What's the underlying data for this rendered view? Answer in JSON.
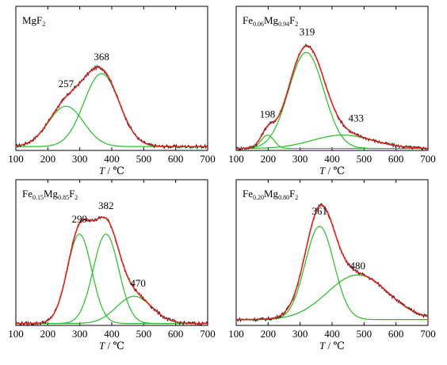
{
  "chart_data": [
    {
      "type": "line",
      "title_parts": [
        {
          "text": "MgF",
          "sub": false
        },
        {
          "text": "2",
          "sub": true
        }
      ],
      "xlabel_var": "T",
      "xlabel_unit": " / ℃",
      "xlim": [
        100,
        700
      ],
      "xticks": [
        "100",
        "200",
        "300",
        "400",
        "500",
        "600",
        "700"
      ],
      "baseline": 0.02,
      "ymax": 0.75,
      "components": [
        {
          "center": 257,
          "sigma": 55,
          "height": 0.21
        },
        {
          "center": 368,
          "sigma": 55,
          "height": 0.38
        }
      ],
      "peak_labels": [
        {
          "text": "257",
          "x": 257,
          "y": 0.33
        },
        {
          "text": "368",
          "x": 368,
          "y": 0.47
        }
      ]
    },
    {
      "type": "line",
      "title_parts": [
        {
          "text": "Fe",
          "sub": false
        },
        {
          "text": "0.06",
          "sub": true
        },
        {
          "text": "Mg",
          "sub": false
        },
        {
          "text": "0.94",
          "sub": true
        },
        {
          "text": "F",
          "sub": false
        },
        {
          "text": "2",
          "sub": true
        }
      ],
      "xlabel_var": "T",
      "xlabel_unit": " / ℃",
      "xlim": [
        100,
        700
      ],
      "xticks": [
        "100",
        "200",
        "300",
        "400",
        "500",
        "600",
        "700"
      ],
      "baseline": 0.01,
      "ymax": 0.75,
      "components": [
        {
          "center": 198,
          "sigma": 20,
          "height": 0.07
        },
        {
          "center": 319,
          "sigma": 55,
          "height": 0.5
        },
        {
          "center": 433,
          "sigma": 95,
          "height": 0.07
        }
      ],
      "peak_labels": [
        {
          "text": "198",
          "x": 198,
          "y": 0.17
        },
        {
          "text": "319",
          "x": 322,
          "y": 0.6
        },
        {
          "text": "433",
          "x": 475,
          "y": 0.15
        }
      ]
    },
    {
      "type": "line",
      "title_parts": [
        {
          "text": "Fe",
          "sub": false
        },
        {
          "text": "0.15",
          "sub": true
        },
        {
          "text": "Mg",
          "sub": false
        },
        {
          "text": "0.85",
          "sub": true
        },
        {
          "text": "F",
          "sub": false
        },
        {
          "text": "2",
          "sub": true
        }
      ],
      "xlabel_var": "T",
      "xlabel_unit": " / ℃",
      "xlim": [
        100,
        700
      ],
      "xticks": [
        "100",
        "200",
        "300",
        "400",
        "500",
        "600",
        "700"
      ],
      "baseline": 0.01,
      "ymax": 0.75,
      "components": [
        {
          "center": 299,
          "sigma": 38,
          "height": 0.46
        },
        {
          "center": 382,
          "sigma": 40,
          "height": 0.46
        },
        {
          "center": 470,
          "sigma": 55,
          "height": 0.14
        }
      ],
      "peak_labels": [
        {
          "text": "299",
          "x": 299,
          "y": 0.53
        },
        {
          "text": "382",
          "x": 382,
          "y": 0.6
        },
        {
          "text": "470",
          "x": 482,
          "y": 0.2
        }
      ]
    },
    {
      "type": "line",
      "title_parts": [
        {
          "text": "Fe",
          "sub": false
        },
        {
          "text": "0.20",
          "sub": true
        },
        {
          "text": "Mg",
          "sub": false
        },
        {
          "text": "0.80",
          "sub": true
        },
        {
          "text": "F",
          "sub": false
        },
        {
          "text": "2",
          "sub": true
        }
      ],
      "xlabel_var": "T",
      "xlabel_unit": " / ℃",
      "xlim": [
        100,
        700
      ],
      "xticks": [
        "100",
        "200",
        "300",
        "400",
        "500",
        "600",
        "700"
      ],
      "baseline": 0.03,
      "ymax": 0.75,
      "components": [
        {
          "center": 361,
          "sigma": 45,
          "height": 0.48
        },
        {
          "center": 480,
          "sigma": 95,
          "height": 0.23
        }
      ],
      "peak_labels": [
        {
          "text": "361",
          "x": 361,
          "y": 0.57
        },
        {
          "text": "480",
          "x": 480,
          "y": 0.29
        }
      ]
    }
  ]
}
